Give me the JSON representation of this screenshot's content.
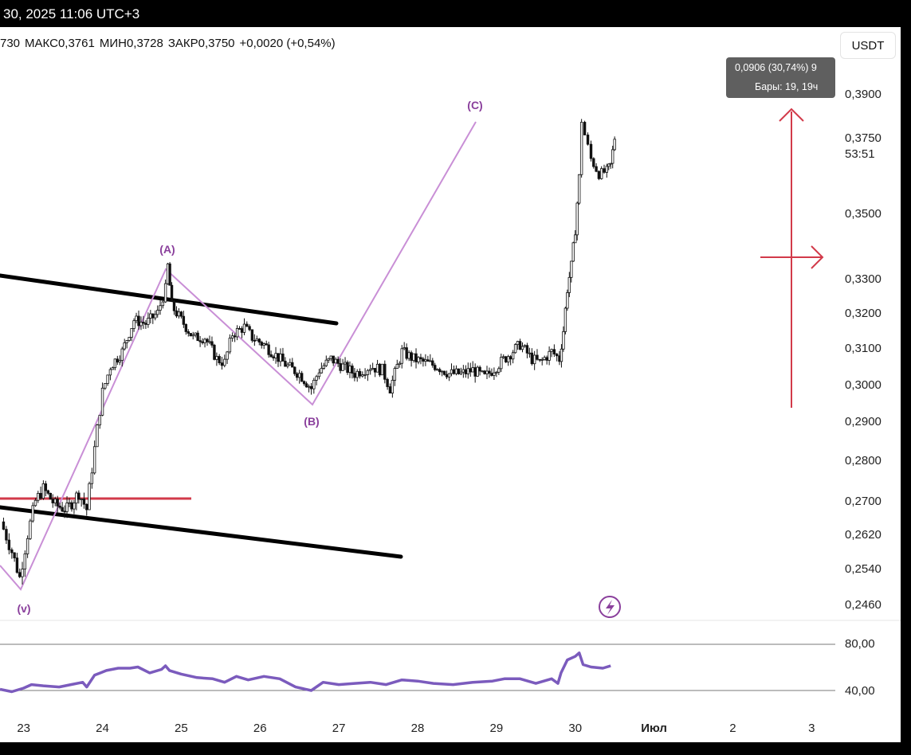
{
  "header": {
    "datetime": "30, 2025 11:06 UTC+3",
    "ohlc": {
      "open": "730",
      "high_label": "МАКС",
      "high": "0,3761",
      "low_label": "МИН",
      "low": "0,3728",
      "close_label": "ЗАКР",
      "close": "0,3750",
      "change": "+0,0020 (+0,54%)"
    },
    "currency_button": "USDT"
  },
  "tooltip": {
    "line1": "0,0906 (30,74%) 9",
    "line2": "Бары: 19, 19ч"
  },
  "colors": {
    "candle": "#111111",
    "wave": "#c98fd6",
    "wave_label": "#8a3f9c",
    "rsi": "#7b5bbd",
    "red": "#d23a4a",
    "trendline": "#000000",
    "grid": "#7a7a7a"
  },
  "chart_data": [
    {
      "type": "candlestick",
      "ylim": [
        0.243,
        0.396
      ],
      "y_ticks": [
        "0,3900",
        "0,3750",
        "0,3500",
        "0,3300",
        "0,3200",
        "0,3100",
        "0,3000",
        "0,2900",
        "0,2800",
        "0,2700",
        "0,2620",
        "0,2540",
        "0,2460"
      ],
      "y_tick_values": [
        0.39,
        0.375,
        0.35,
        0.33,
        0.32,
        0.31,
        0.3,
        0.29,
        0.28,
        0.27,
        0.262,
        0.254,
        0.246
      ],
      "x_ticks": [
        "23",
        "24",
        "25",
        "26",
        "27",
        "28",
        "29",
        "30",
        "Июл",
        "2",
        "3"
      ],
      "x_tick_values": [
        23,
        24,
        25,
        26,
        27,
        28,
        29,
        30,
        31,
        32,
        33
      ],
      "xlim": [
        22.7,
        33.3
      ],
      "last_price": "0,3750",
      "countdown": "53:51",
      "price_path": [
        [
          22.71,
          0.265
        ],
        [
          22.85,
          0.258
        ],
        [
          22.95,
          0.252
        ],
        [
          23.05,
          0.262
        ],
        [
          23.15,
          0.27
        ],
        [
          23.25,
          0.273
        ],
        [
          23.4,
          0.269
        ],
        [
          23.55,
          0.268
        ],
        [
          23.7,
          0.272
        ],
        [
          23.8,
          0.268
        ],
        [
          23.9,
          0.283
        ],
        [
          24.0,
          0.298
        ],
        [
          24.1,
          0.305
        ],
        [
          24.25,
          0.309
        ],
        [
          24.4,
          0.318
        ],
        [
          24.55,
          0.317
        ],
        [
          24.7,
          0.32
        ],
        [
          24.8,
          0.327
        ],
        [
          24.83,
          0.334
        ],
        [
          24.88,
          0.322
        ],
        [
          25.0,
          0.318
        ],
        [
          25.15,
          0.313
        ],
        [
          25.3,
          0.313
        ],
        [
          25.45,
          0.307
        ],
        [
          25.55,
          0.306
        ],
        [
          25.65,
          0.314
        ],
        [
          25.8,
          0.316
        ],
        [
          25.9,
          0.313
        ],
        [
          26.05,
          0.311
        ],
        [
          26.2,
          0.308
        ],
        [
          26.35,
          0.305
        ],
        [
          26.5,
          0.303
        ],
        [
          26.65,
          0.299
        ],
        [
          26.75,
          0.304
        ],
        [
          26.9,
          0.307
        ],
        [
          27.05,
          0.305
        ],
        [
          27.2,
          0.303
        ],
        [
          27.4,
          0.305
        ],
        [
          27.55,
          0.304
        ],
        [
          27.65,
          0.299
        ],
        [
          27.8,
          0.309
        ],
        [
          27.95,
          0.307
        ],
        [
          28.1,
          0.306
        ],
        [
          28.25,
          0.305
        ],
        [
          28.4,
          0.303
        ],
        [
          28.55,
          0.303
        ],
        [
          28.7,
          0.304
        ],
        [
          28.85,
          0.302
        ],
        [
          29.0,
          0.305
        ],
        [
          29.15,
          0.308
        ],
        [
          29.3,
          0.311
        ],
        [
          29.45,
          0.307
        ],
        [
          29.55,
          0.306
        ],
        [
          29.7,
          0.309
        ],
        [
          29.8,
          0.307
        ],
        [
          29.85,
          0.315
        ],
        [
          29.9,
          0.327
        ],
        [
          29.95,
          0.334
        ],
        [
          30.0,
          0.345
        ],
        [
          30.05,
          0.362
        ],
        [
          30.08,
          0.381
        ],
        [
          30.12,
          0.376
        ],
        [
          30.2,
          0.368
        ],
        [
          30.3,
          0.363
        ],
        [
          30.4,
          0.364
        ],
        [
          30.45,
          0.366
        ],
        [
          30.5,
          0.375
        ]
      ]
    },
    {
      "type": "line",
      "indicator": "RSI",
      "ylim": [
        27,
        88
      ],
      "y_ticks": [
        "80,00",
        "40,00"
      ],
      "y_tick_values": [
        80,
        40
      ],
      "guide_levels": [
        70,
        30
      ],
      "x": [
        22.7,
        22.85,
        23.0,
        23.1,
        23.25,
        23.45,
        23.6,
        23.75,
        23.8,
        23.9,
        24.05,
        24.2,
        24.35,
        24.45,
        24.6,
        24.75,
        24.8,
        24.85,
        25.0,
        25.2,
        25.4,
        25.55,
        25.7,
        25.85,
        26.05,
        26.25,
        26.45,
        26.65,
        26.8,
        27.0,
        27.2,
        27.4,
        27.6,
        27.8,
        28.0,
        28.2,
        28.45,
        28.7,
        28.95,
        29.1,
        29.3,
        29.5,
        29.7,
        29.78,
        29.82,
        29.9,
        30.0,
        30.05,
        30.1,
        30.2,
        30.35,
        30.4,
        30.45
      ],
      "values": [
        41,
        39,
        42,
        45,
        44,
        43,
        45,
        47,
        43,
        53,
        57,
        59,
        59,
        60,
        55,
        58,
        61,
        57,
        54,
        51,
        50,
        47,
        52,
        49,
        52,
        50,
        43,
        40,
        47,
        45,
        46,
        47,
        45,
        49,
        48,
        46,
        45,
        47,
        48,
        50,
        50,
        46,
        50,
        46,
        55,
        66,
        69,
        72,
        62,
        60,
        59,
        60,
        61
      ]
    }
  ],
  "wave_labels": {
    "a": "(A)",
    "b": "(B)",
    "c": "(C)",
    "v": "(v)"
  }
}
